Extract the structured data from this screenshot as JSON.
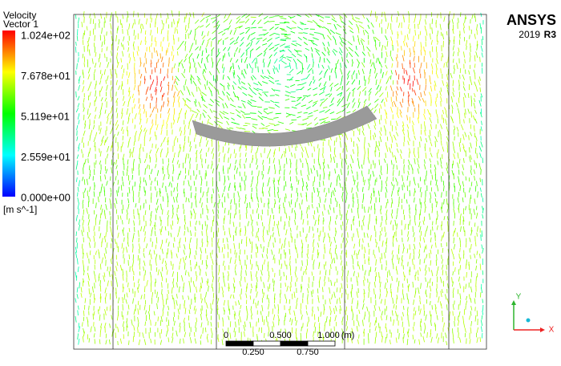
{
  "legend": {
    "title": "Velocity",
    "subtitle": "Vector 1",
    "labels": [
      "1.024e+02",
      "7.678e+01",
      "5.119e+01",
      "2.559e+01",
      "0.000e+00"
    ],
    "unit": "[m s^-1]"
  },
  "logo": {
    "brand": "ANSYS",
    "year": "2019",
    "release": "R3"
  },
  "scale_bar": {
    "top_labels": [
      "0",
      "0.500",
      "1.000"
    ],
    "unit": "(m)",
    "bottom_labels": [
      "0.250",
      "0.750"
    ]
  },
  "triad": {
    "y": "Y",
    "x": "X"
  }
}
